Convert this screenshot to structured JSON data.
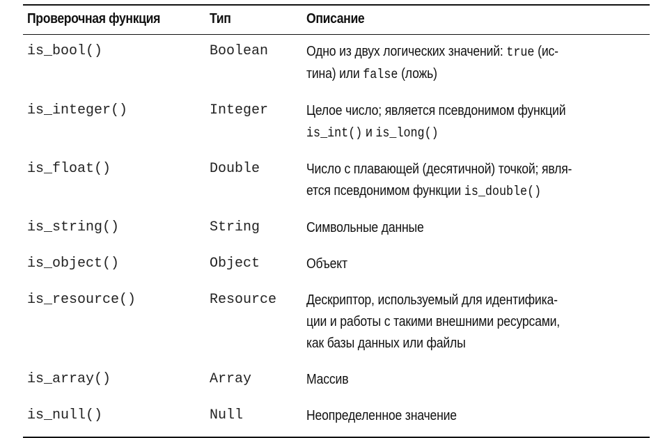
{
  "table": {
    "headers": {
      "function": "Проверочная функция",
      "type": "Тип",
      "description": "Описание"
    },
    "rows": [
      {
        "function": "is_bool()",
        "type": "Boolean",
        "desc": {
          "p1": "Одно из двух логических значений: ",
          "c1": "true",
          "p2": " (ис-",
          "p3": "тина) или ",
          "c2": "false",
          "p4": " (ложь)"
        }
      },
      {
        "function": "is_integer()",
        "type": "Integer",
        "desc": {
          "p1": "Целое число; является псевдонимом функций",
          "c1": "is_int()",
          "p2": " и ",
          "c2": "is_long()"
        }
      },
      {
        "function": "is_float()",
        "type": "Double",
        "desc": {
          "p1": "Число с плавающей (десятичной) точкой; явля-",
          "p2": "ется псевдонимом функции ",
          "c1": "is_double()"
        }
      },
      {
        "function": "is_string()",
        "type": "String",
        "desc": {
          "text": "Символьные данные"
        }
      },
      {
        "function": "is_object()",
        "type": "Object",
        "desc": {
          "text": "Объект"
        }
      },
      {
        "function": "is_resource()",
        "type": "Resource",
        "desc": {
          "l1": "Дескриптор, используемый для идентифика-",
          "l2": "ции и работы с такими внешними ресурсами,",
          "l3": "как базы данных или файлы"
        }
      },
      {
        "function": "is_array()",
        "type": "Array",
        "desc": {
          "text": "Массив"
        }
      },
      {
        "function": "is_null()",
        "type": "Null",
        "desc": {
          "text": "Неопределенное значение"
        }
      }
    ]
  }
}
